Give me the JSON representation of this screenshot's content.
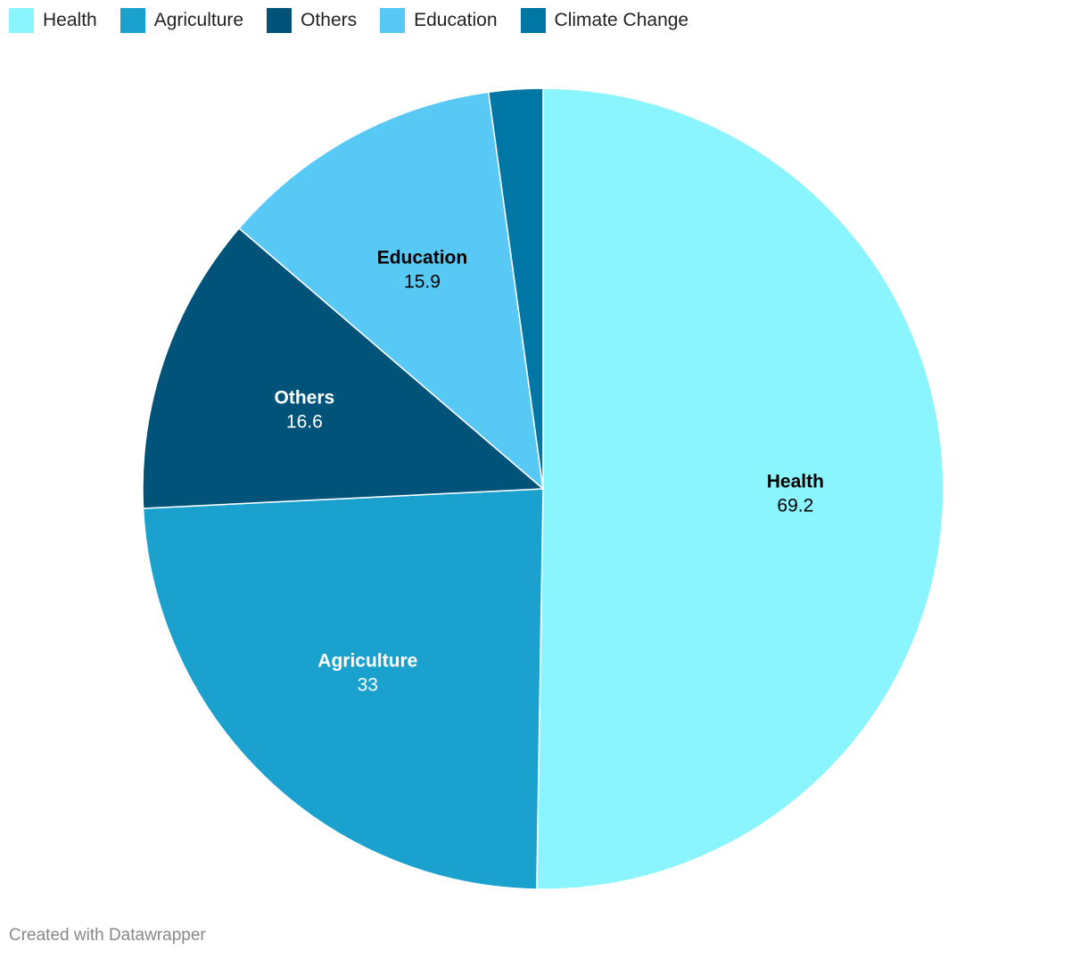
{
  "chart_data": {
    "type": "pie",
    "title": "",
    "categories": [
      "Health",
      "Agriculture",
      "Others",
      "Education",
      "Climate Change"
    ],
    "values": [
      69.2,
      33,
      16.6,
      15.9,
      3.0
    ],
    "labels_shown": [
      "69.2",
      "33",
      "16.6",
      "15.9",
      ""
    ],
    "colors": [
      "#8af5fe",
      "#1aa1cd",
      "#02537a",
      "#58c9f5",
      "#0076a4"
    ],
    "label_colors": [
      "#000000",
      "#ffffff",
      "#ffffff",
      "#000000",
      ""
    ],
    "legend_position": "top-left",
    "start": "12 o'clock",
    "direction": "clockwise"
  },
  "footer": {
    "credit": "Created with Datawrapper"
  }
}
